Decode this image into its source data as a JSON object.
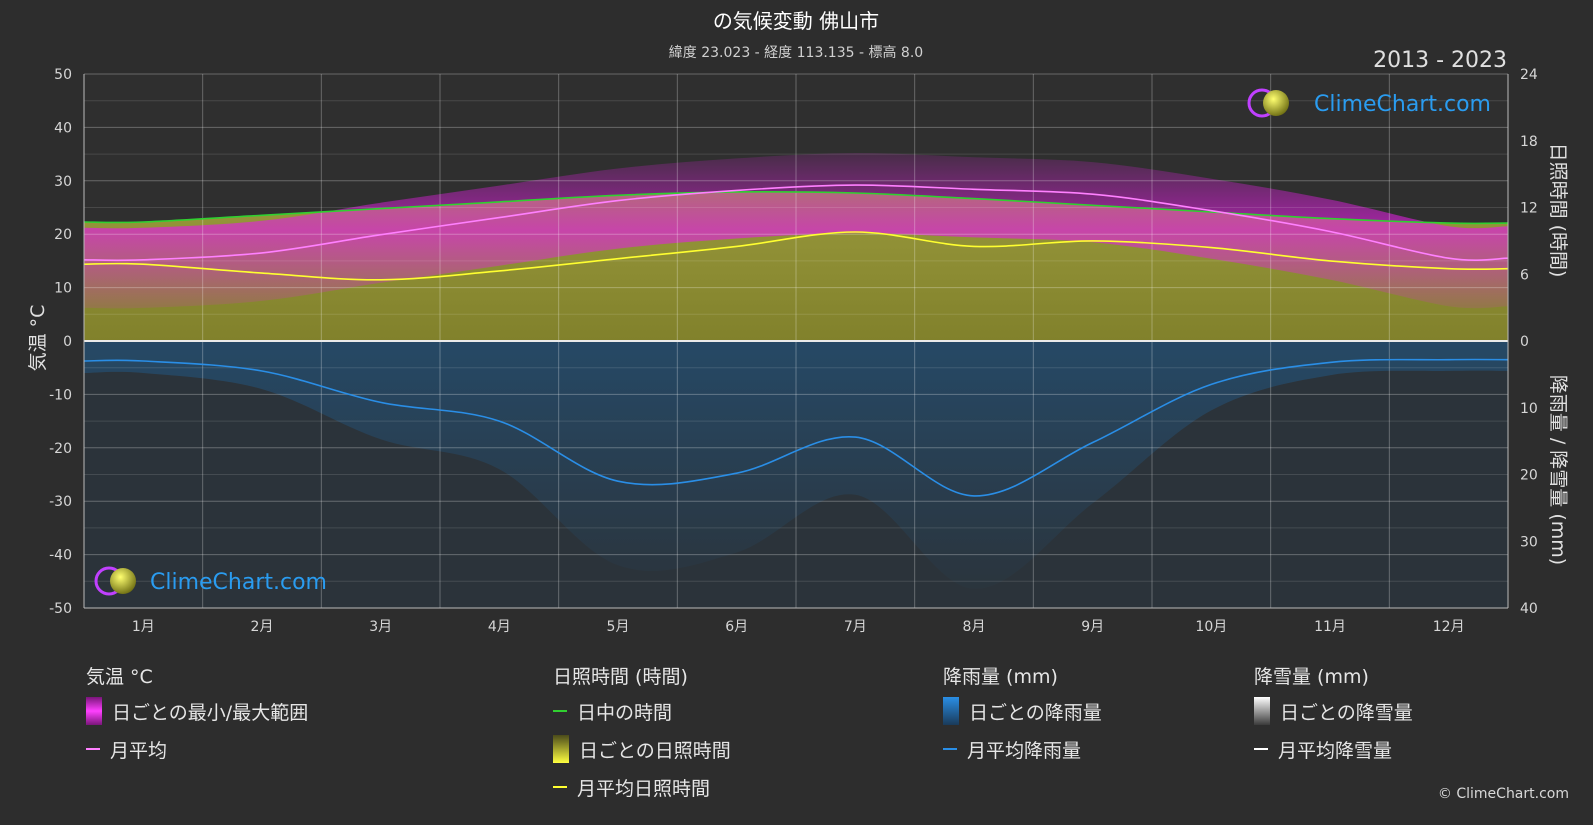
{
  "title": "の気候変動 佛山市",
  "subtitle": "緯度 23.023 - 経度 113.135 - 標高 8.0",
  "year_range": "2013 - 2023",
  "brand": "ClimeChart.com",
  "copyright": "© ClimeChart.com",
  "colors": {
    "background": "#2d2d2d",
    "temp_range": "#e020e0",
    "temp_avg": "#ff80ff",
    "daylight": "#30d030",
    "sunshine_daily": "#b8b830",
    "sunshine_avg": "#ffff30",
    "rain_daily": "#2070b0",
    "rain_avg": "#2a8ee6",
    "snow_avg": "#ffffff"
  },
  "legend": {
    "temp": {
      "title": "気温 °C",
      "range": "日ごとの最小/最大範囲",
      "avg": "月平均"
    },
    "sun": {
      "title": "日照時間 (時間)",
      "daylight": "日中の時間",
      "daily": "日ごとの日照時間",
      "avg": "月平均日照時間"
    },
    "rain": {
      "title": "降雨量 (mm)",
      "daily": "日ごとの降雨量",
      "avg": "月平均降雨量"
    },
    "snow": {
      "title": "降雪量 (mm)",
      "daily": "日ごとの降雪量",
      "avg": "月平均降雪量"
    }
  },
  "chart_data": {
    "type": "line",
    "title": "の気候変動 佛山市",
    "subtitle": "緯度 23.023 - 経度 113.135 - 標高 8.0",
    "categories": [
      "1月",
      "2月",
      "3月",
      "4月",
      "5月",
      "6月",
      "7月",
      "8月",
      "9月",
      "10月",
      "11月",
      "12月"
    ],
    "y_left": {
      "label": "気温 °C",
      "range": [
        -50,
        50
      ],
      "ticks": [
        50,
        40,
        30,
        20,
        10,
        0,
        -10,
        -20,
        -30,
        -40,
        -50
      ]
    },
    "y_right_top": {
      "label": "日照時間 (時間)",
      "range": [
        0,
        24
      ],
      "ticks": [
        24,
        18,
        12,
        6,
        0
      ]
    },
    "y_right_bottom": {
      "label": "降雨量 / 降雪量 (mm)",
      "range": [
        0,
        40
      ],
      "ticks": [
        0,
        10,
        20,
        30,
        40
      ]
    },
    "grid": true,
    "series": [
      {
        "name": "月平均",
        "axis": "temperature_c",
        "values": [
          15.2,
          16.5,
          19.9,
          23.1,
          26.3,
          28.2,
          29.2,
          28.4,
          27.5,
          24.4,
          20.5,
          15.5
        ]
      },
      {
        "name": "日中の時間",
        "axis": "hours",
        "values": [
          10.7,
          11.3,
          11.9,
          12.5,
          13.1,
          13.4,
          13.3,
          12.8,
          12.2,
          11.6,
          11.0,
          10.6
        ]
      },
      {
        "name": "月平均日照時間",
        "axis": "hours",
        "values": [
          6.9,
          6.1,
          5.5,
          6.3,
          7.4,
          8.5,
          9.8,
          8.5,
          9.0,
          8.4,
          7.2,
          6.5
        ]
      },
      {
        "name": "月平均降雨量",
        "axis": "mm",
        "values": [
          3.0,
          4.5,
          9.2,
          12.0,
          21.0,
          19.8,
          14.4,
          23.2,
          15.2,
          6.5,
          3.2,
          2.8
        ]
      },
      {
        "name": "月平均降雪量",
        "axis": "mm",
        "values": [
          0,
          0,
          0,
          0,
          0,
          0,
          0,
          0,
          0,
          0,
          0,
          0
        ]
      }
    ]
  }
}
